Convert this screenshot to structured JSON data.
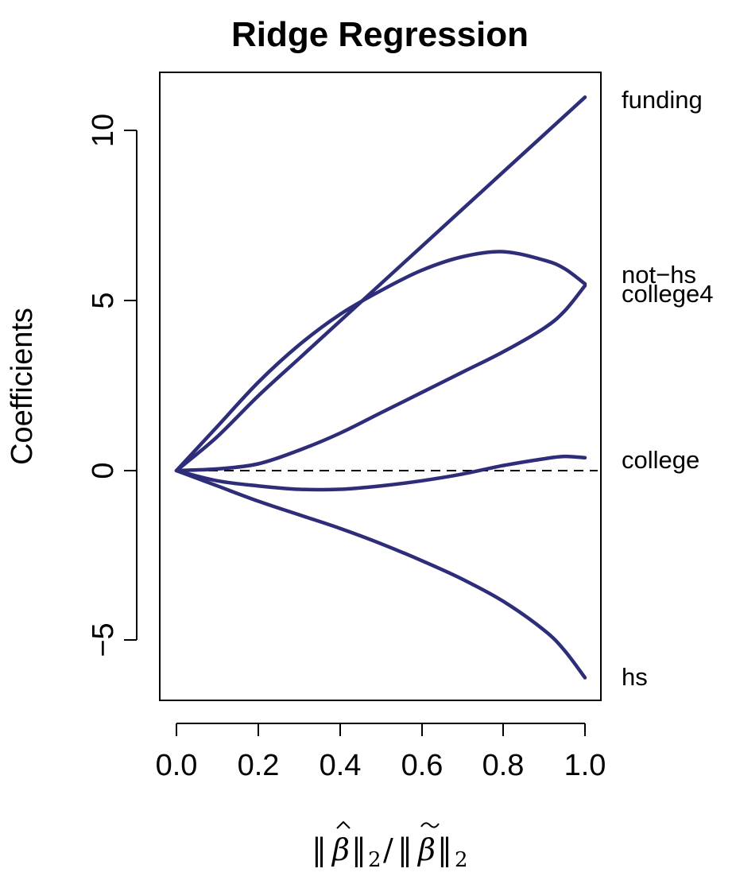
{
  "chart_data": {
    "type": "line",
    "title": "Ridge Regression",
    "ylabel": "Coefficients",
    "xlim": [
      0,
      1.0
    ],
    "ylim": [
      -6.7,
      11.8
    ],
    "x_ticks": [
      "0.0",
      "0.2",
      "0.4",
      "0.6",
      "0.8",
      "1.0"
    ],
    "x_tick_values": [
      0,
      0.2,
      0.4,
      0.6,
      0.8,
      1.0
    ],
    "y_ticks": [
      "−5",
      "0",
      "5",
      "10"
    ],
    "y_tick_values": [
      -5,
      0,
      5,
      10
    ],
    "reference_line": {
      "y": 0,
      "style": "dashed"
    },
    "grid": false,
    "line_color": "#2e2d7a",
    "x": [
      0,
      0.1,
      0.2,
      0.3,
      0.4,
      0.5,
      0.6,
      0.7,
      0.8,
      0.9,
      0.95,
      1.0
    ],
    "series": [
      {
        "name": "funding",
        "values": [
          0,
          1.0,
          2.2,
          3.3,
          4.4,
          5.5,
          6.6,
          7.7,
          8.8,
          9.9,
          10.45,
          11.0
        ]
      },
      {
        "name": "not−hs",
        "values": [
          0,
          1.3,
          2.6,
          3.7,
          4.6,
          5.3,
          5.9,
          6.3,
          6.45,
          6.2,
          5.95,
          5.5
        ]
      },
      {
        "name": "college4",
        "values": [
          0,
          0.05,
          0.2,
          0.6,
          1.1,
          1.7,
          2.3,
          2.9,
          3.5,
          4.2,
          4.7,
          5.45
        ]
      },
      {
        "name": "college",
        "values": [
          0,
          -0.3,
          -0.45,
          -0.55,
          -0.55,
          -0.45,
          -0.3,
          -0.1,
          0.15,
          0.35,
          0.42,
          0.38
        ]
      },
      {
        "name": "hs",
        "values": [
          0,
          -0.45,
          -0.9,
          -1.3,
          -1.7,
          -2.15,
          -2.65,
          -3.2,
          -3.85,
          -4.7,
          -5.3,
          -6.1
        ]
      }
    ]
  }
}
